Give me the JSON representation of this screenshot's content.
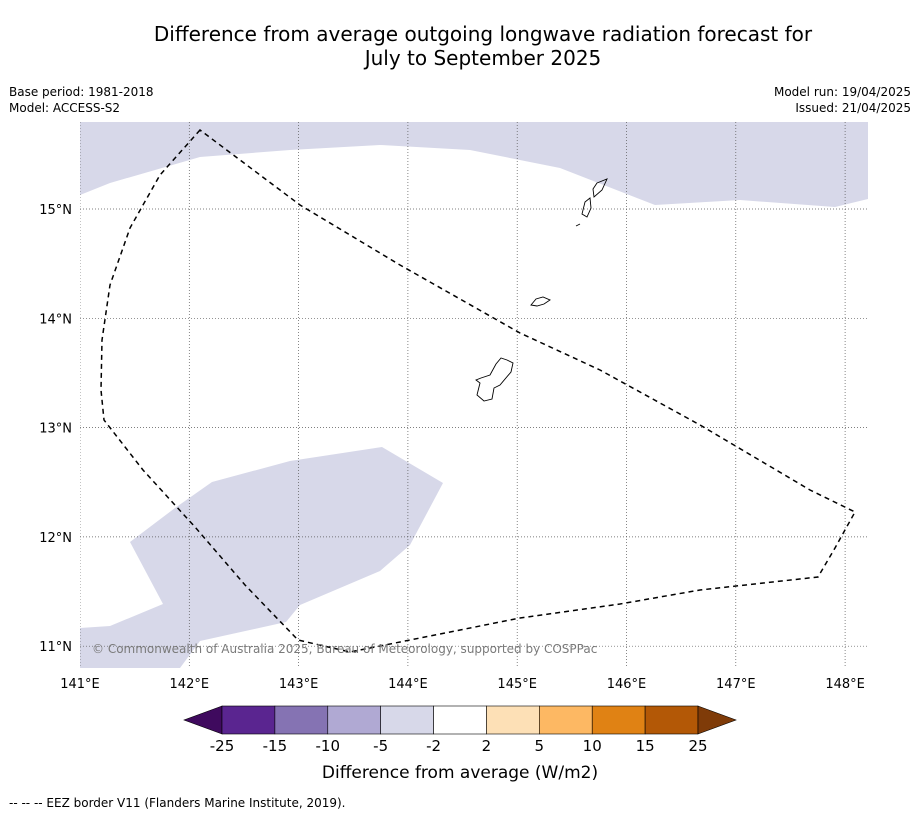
{
  "title_line1": "Difference from average outgoing longwave radiation forecast for",
  "title_line2": "July to September 2025",
  "meta": {
    "base_period": "Base period: 1981-2018",
    "model": "Model: ACCESS-S2",
    "model_run": "Model run: 19/04/2025",
    "issued": "Issued: 21/04/2025"
  },
  "map": {
    "lon_ticks": [
      "141°E",
      "142°E",
      "143°E",
      "144°E",
      "145°E",
      "146°E",
      "147°E",
      "148°E"
    ],
    "lat_ticks": [
      "15°N",
      "14°N",
      "13°N",
      "12°N",
      "11°N"
    ],
    "copyright": "© Commonwealth of Australia 2025, Bureau of Meteorology, supported by COSPPac",
    "anomaly_fill_color": "#d7d8e9",
    "eez_line_color": "#000000"
  },
  "colorbar": {
    "title": "Difference from average (W/m2)",
    "labels": [
      "-25",
      "-15",
      "-10",
      "-5",
      "-2",
      "2",
      "5",
      "10",
      "15",
      "25"
    ],
    "colors": [
      "#3f0a5e",
      "#5a2590",
      "#8573b3",
      "#b0a9d3",
      "#d7d8e9",
      "#ffffff",
      "#fde0b6",
      "#fdb863",
      "#e08214",
      "#b35806",
      "#7f3b08"
    ]
  },
  "footnote": "--  --  -- EEZ border V11 (Flanders Marine Institute, 2019)."
}
